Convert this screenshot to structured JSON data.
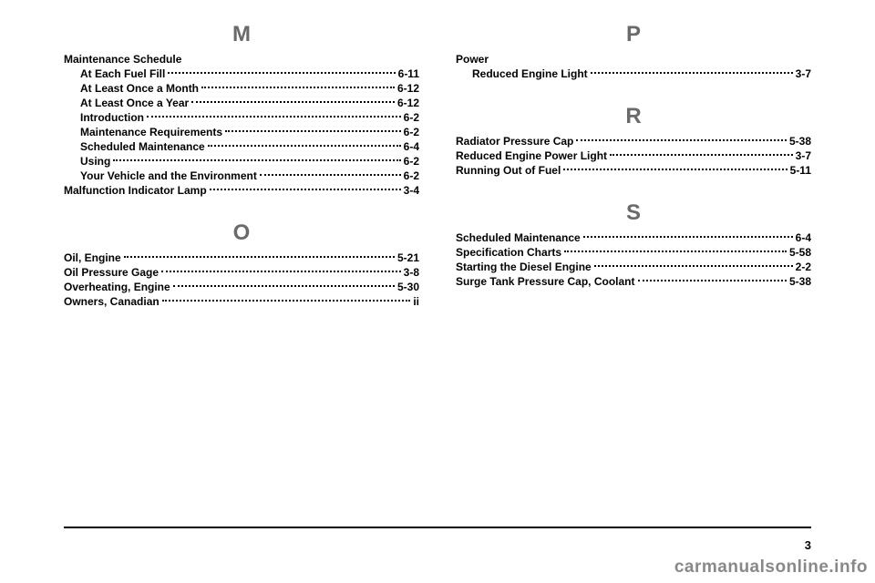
{
  "left": {
    "sections": [
      {
        "letter": "M",
        "groups": [
          {
            "header": "Maintenance Schedule",
            "entries": [
              {
                "label": "At Each Fuel Fill",
                "page": "6-11",
                "sub": true
              },
              {
                "label": "At Least Once a Month",
                "page": "6-12",
                "sub": true
              },
              {
                "label": "At Least Once a Year",
                "page": "6-12",
                "sub": true
              },
              {
                "label": "Introduction",
                "page": "6-2",
                "sub": true
              },
              {
                "label": "Maintenance Requirements",
                "page": "6-2",
                "sub": true
              },
              {
                "label": "Scheduled Maintenance",
                "page": "6-4",
                "sub": true
              },
              {
                "label": "Using",
                "page": "6-2",
                "sub": true
              },
              {
                "label": "Your Vehicle and the Environment",
                "page": "6-2",
                "sub": true
              }
            ]
          },
          {
            "entries": [
              {
                "label": "Malfunction Indicator Lamp",
                "page": "3-4",
                "sub": false
              }
            ]
          }
        ]
      },
      {
        "letter": "O",
        "groups": [
          {
            "entries": [
              {
                "label": "Oil, Engine",
                "page": "5-21",
                "sub": false
              },
              {
                "label": "Oil Pressure Gage",
                "page": "3-8",
                "sub": false
              },
              {
                "label": "Overheating, Engine",
                "page": "5-30",
                "sub": false
              },
              {
                "label": "Owners, Canadian",
                "page": "ii",
                "sub": false
              }
            ]
          }
        ]
      }
    ]
  },
  "right": {
    "sections": [
      {
        "letter": "P",
        "groups": [
          {
            "header": "Power",
            "entries": [
              {
                "label": "Reduced Engine Light",
                "page": "3-7",
                "sub": true
              }
            ]
          }
        ]
      },
      {
        "letter": "R",
        "groups": [
          {
            "entries": [
              {
                "label": "Radiator Pressure Cap",
                "page": "5-38",
                "sub": false
              },
              {
                "label": "Reduced Engine Power Light",
                "page": "3-7",
                "sub": false
              },
              {
                "label": "Running Out of Fuel",
                "page": "5-11",
                "sub": false
              }
            ]
          }
        ]
      },
      {
        "letter": "S",
        "groups": [
          {
            "entries": [
              {
                "label": "Scheduled Maintenance",
                "page": "6-4",
                "sub": false
              },
              {
                "label": "Specification Charts",
                "page": "5-58",
                "sub": false
              },
              {
                "label": "Starting the Diesel Engine",
                "page": "2-2",
                "sub": false
              },
              {
                "label": "Surge Tank Pressure Cap, Coolant",
                "page": "5-38",
                "sub": false
              }
            ]
          }
        ]
      }
    ]
  },
  "page_number": "3",
  "watermark": "carmanualsonline.info"
}
